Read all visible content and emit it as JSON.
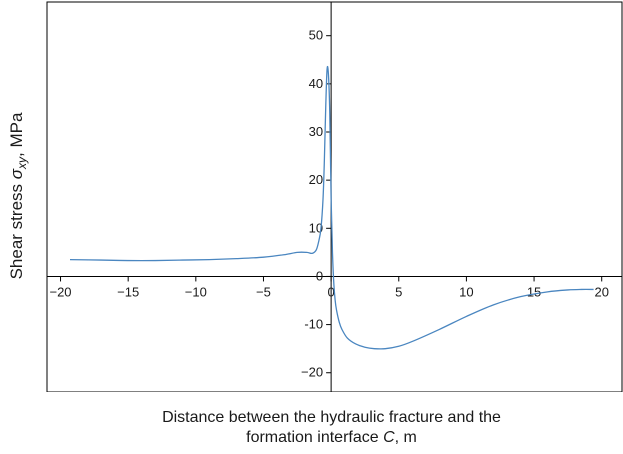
{
  "chart_data": {
    "type": "line",
    "xlabel_line1": "Distance between the hydraulic fracture and the",
    "xlabel_line2_pre": "formation interface ",
    "xlabel_line2_var": "C",
    "xlabel_line2_post": ", m",
    "ylabel_pre": "Shear stress ",
    "ylabel_sigma": "σ",
    "ylabel_sub": "xy",
    "ylabel_post": ", MPa",
    "xlim": [
      -21,
      21.5
    ],
    "ylim": [
      -24,
      57
    ],
    "x_ticks": [
      -20,
      -15,
      -10,
      -5,
      0,
      5,
      10,
      15,
      20
    ],
    "x_tick_labels": [
      "−20",
      "−15",
      "−10",
      "−5",
      "0",
      "5",
      "10",
      "15",
      "20"
    ],
    "y_ticks": [
      -20,
      -10,
      0,
      10,
      20,
      30,
      40,
      50
    ],
    "y_tick_labels": [
      "−20",
      "-10",
      "0",
      "10",
      "20",
      "30",
      "40",
      "50"
    ],
    "grid": false,
    "series": [
      {
        "color": "#4a86c0",
        "x": [
          -19.3,
          -17,
          -15,
          -13,
          -11,
          -9,
          -7,
          -5,
          -3.5,
          -2.5,
          -1.8,
          -1.4,
          -1.1,
          -0.9,
          -0.75,
          -0.6,
          -0.5,
          -0.4,
          -0.3,
          -0.2,
          -0.1,
          0.0,
          0.1,
          0.2,
          0.3,
          0.4,
          0.6,
          0.8,
          1.2,
          1.8,
          2.5,
          3.2,
          4.0,
          5.0,
          6.0,
          8.0,
          10.0,
          12.0,
          14.0,
          16.0,
          17.5,
          18.5,
          19.4
        ],
        "y": [
          3.5,
          3.4,
          3.3,
          3.3,
          3.4,
          3.5,
          3.7,
          4.0,
          4.5,
          5.0,
          5.0,
          4.8,
          5.5,
          7.5,
          10.0,
          16.0,
          24.0,
          35.0,
          43.0,
          42.0,
          34.0,
          16.0,
          5.0,
          -1.5,
          -5.0,
          -7.0,
          -9.5,
          -11.0,
          -12.8,
          -14.0,
          -14.7,
          -15.0,
          -15.0,
          -14.5,
          -13.5,
          -11.0,
          -8.3,
          -5.9,
          -4.2,
          -3.2,
          -2.8,
          -2.7,
          -2.7
        ]
      }
    ]
  }
}
